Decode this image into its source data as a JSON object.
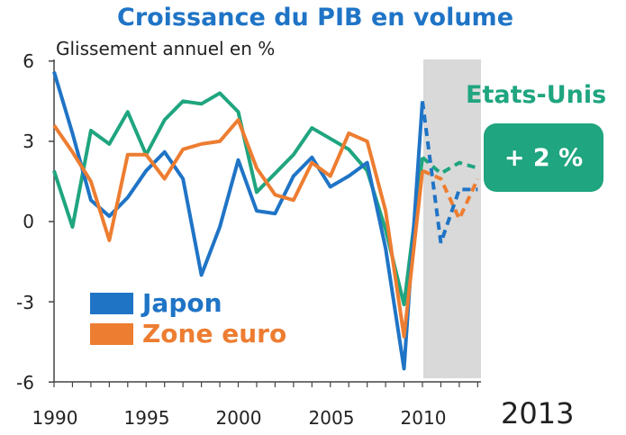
{
  "title": "Croissance du PIB en volume",
  "ylabel": "Glissement annuel en %",
  "us_label": "Etats-Unis",
  "us_value": "+ 2 %",
  "forecast_year_label": "2013",
  "colors": {
    "japon": "#1f74c6",
    "zone_euro": "#ed7d31",
    "etats_unis": "#1fa57f",
    "forecast_band": "#d9d9d9"
  },
  "chart_data": {
    "type": "line",
    "title": "Croissance du PIB en volume",
    "ylabel": "Glissement annuel en %",
    "xlabel": "",
    "xlim": [
      1990,
      2013
    ],
    "ylim": [
      -6,
      6
    ],
    "y_ticks": [
      "6",
      "3",
      "0",
      "-3",
      "-6"
    ],
    "x_ticks": [
      "1990",
      "1995",
      "2000",
      "2005",
      "2010"
    ],
    "grid": false,
    "forecast_start": 2010,
    "x": [
      1990,
      1991,
      1992,
      1993,
      1994,
      1995,
      1996,
      1997,
      1998,
      1999,
      2000,
      2001,
      2002,
      2003,
      2004,
      2005,
      2006,
      2007,
      2008,
      2009,
      2010,
      2011,
      2012,
      2013
    ],
    "series": [
      {
        "name": "Etats-Unis",
        "color": "#1fa57f",
        "values": [
          1.9,
          -0.2,
          3.4,
          2.9,
          4.1,
          2.5,
          3.8,
          4.5,
          4.4,
          4.8,
          4.1,
          1.1,
          1.8,
          2.5,
          3.5,
          3.1,
          2.7,
          1.9,
          -0.3,
          -3.1,
          2.4,
          1.8,
          2.2,
          2.0
        ],
        "forecast_from_index": 20
      },
      {
        "name": "Japon",
        "color": "#1f74c6",
        "values": [
          5.6,
          3.3,
          0.8,
          0.2,
          0.9,
          1.9,
          2.6,
          1.6,
          -2.0,
          -0.2,
          2.3,
          0.4,
          0.3,
          1.7,
          2.4,
          1.3,
          1.7,
          2.2,
          -1.0,
          -5.5,
          4.5,
          -0.8,
          1.2,
          1.2
        ],
        "forecast_from_index": 20
      },
      {
        "name": "Zone euro",
        "color": "#ed7d31",
        "values": [
          3.6,
          2.6,
          1.5,
          -0.7,
          2.5,
          2.5,
          1.6,
          2.7,
          2.9,
          3.0,
          3.8,
          2.0,
          1.0,
          0.8,
          2.2,
          1.7,
          3.3,
          3.0,
          0.4,
          -4.3,
          1.9,
          1.6,
          0.1,
          1.6
        ],
        "forecast_from_index": 20
      }
    ],
    "legend": {
      "position": "bottom-left",
      "entries": [
        "Japon",
        "Zone euro"
      ]
    },
    "annotations": [
      "Etats-Unis",
      "+ 2 %",
      "2013"
    ]
  }
}
